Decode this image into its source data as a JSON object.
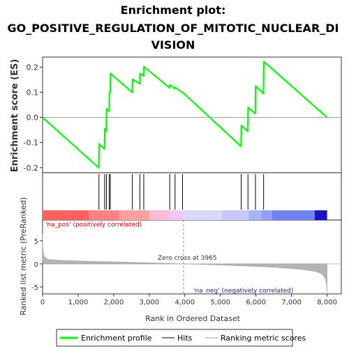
{
  "chart_data": {
    "type": "line",
    "title_line1": "Enrichment plot:",
    "title_line2": "GO_POSITIVE_REGULATION_OF_MITOTIC_NUCLEAR_DI",
    "title_line3": "VISION",
    "xlabel": "Rank in Ordered Dataset",
    "ylabel_top": "Enrichment score (ES)",
    "ylabel_bottom": "Ranked list metric (PreRanked)",
    "xlim": [
      0,
      8400
    ],
    "x_ticks": [
      0,
      1000,
      2000,
      3000,
      4000,
      5000,
      6000,
      7000,
      8000
    ],
    "x_tick_labels": [
      "0",
      "1,000",
      "2,000",
      "3,000",
      "4,000",
      "5,000",
      "6,000",
      "7,000",
      "8,000"
    ],
    "es_ylim": [
      -0.22,
      0.24
    ],
    "es_ticks": [
      -0.2,
      -0.1,
      0.0,
      0.1,
      0.2
    ],
    "es_tick_labels": [
      "-0.2",
      "-0.1",
      "0.0",
      "0.1",
      "0.2"
    ],
    "metric_ylim": [
      -6.5,
      9.5
    ],
    "metric_ticks": [
      -5,
      0,
      5
    ],
    "metric_tick_labels": [
      "-5",
      "0",
      "5"
    ],
    "es_series": {
      "name": "Enrichment profile",
      "color": "#00ff00",
      "x": [
        0,
        1580,
        1590,
        1740,
        1750,
        1790,
        1800,
        1870,
        1880,
        1900,
        1910,
        2520,
        2530,
        2730,
        2740,
        2840,
        2850,
        3570,
        3580,
        3720,
        3730,
        3930,
        3940,
        5580,
        5590,
        5770,
        5780,
        5980,
        5990,
        6210,
        6220,
        8000
      ],
      "y": [
        0.0,
        -0.2,
        -0.105,
        -0.125,
        -0.045,
        -0.055,
        0.035,
        0.025,
        0.1,
        0.1,
        0.175,
        0.1,
        0.152,
        0.135,
        0.175,
        0.165,
        0.202,
        0.118,
        0.13,
        0.115,
        0.12,
        0.1,
        0.1,
        -0.115,
        -0.032,
        -0.055,
        0.04,
        0.015,
        0.125,
        0.095,
        0.223,
        0.0
      ]
    },
    "hits": [
      1585,
      1745,
      1795,
      1875,
      1905,
      2525,
      2735,
      2845,
      3575,
      3725,
      3935,
      5585,
      5775,
      5985,
      6215
    ],
    "heatmap_colors": [
      "#ff6060",
      "#ff8282",
      "#ffa0a0",
      "#ffbcd4",
      "#f4c7f0",
      "#d8d8f8",
      "#c8c8f8",
      "#a8b4f8",
      "#8ea0f8",
      "#6e82f0",
      "#1c10c8"
    ],
    "heatmap_breaks": [
      0,
      1300,
      2150,
      3000,
      3550,
      3950,
      5050,
      5800,
      6150,
      6450,
      7650,
      8000
    ],
    "metric_profile": {
      "x": [
        0,
        5,
        20,
        60,
        150,
        300,
        600,
        1000,
        1500,
        2000,
        2500,
        3000,
        3500,
        3965,
        4500,
        5000,
        5500,
        6000,
        6500,
        7000,
        7400,
        7700,
        7850,
        7920,
        7960,
        7985,
        8000
      ],
      "y": [
        6.5,
        3.5,
        2.2,
        1.5,
        1.0,
        0.9,
        0.75,
        0.65,
        0.55,
        0.45,
        0.35,
        0.25,
        0.12,
        0.0,
        -0.12,
        -0.25,
        -0.4,
        -0.55,
        -0.75,
        -1.0,
        -1.3,
        -1.7,
        -2.2,
        -2.8,
        -3.5,
        -4.5,
        -6.2
      ]
    },
    "annot_pos": "'na_pos' (positively correlated)",
    "annot_neg": "'na_neg' (negatively correlated)",
    "zero_cross": "Zero cross at 3965",
    "zero_cross_x": 3965,
    "legend": {
      "profile": "Enrichment profile",
      "hits": "Hits",
      "ranking": "Ranking metric scores"
    }
  }
}
